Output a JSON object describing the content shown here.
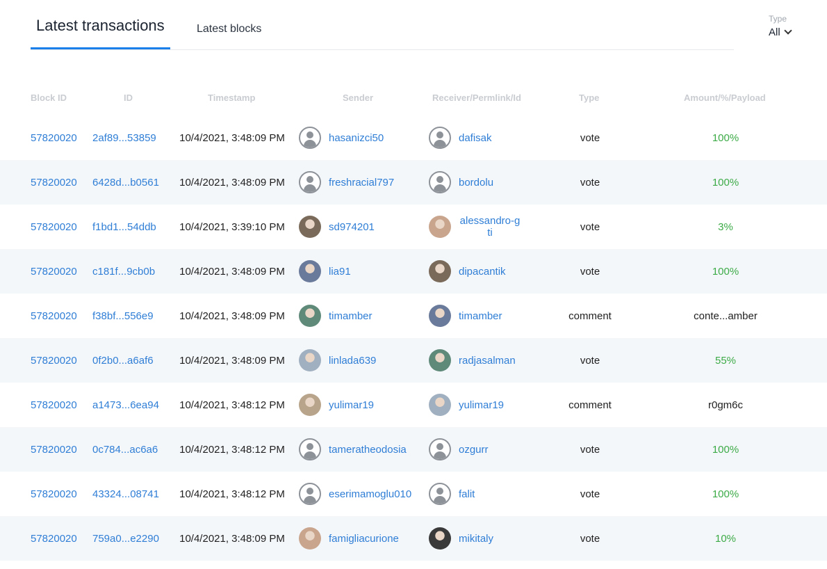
{
  "tabs": [
    {
      "label": "Latest transactions",
      "active": true
    },
    {
      "label": "Latest blocks",
      "active": false
    }
  ],
  "type_filter": {
    "label": "Type",
    "value": "All"
  },
  "columns": [
    "Block ID",
    "ID",
    "Timestamp",
    "Sender",
    "Receiver/Permlink/Id",
    "Type",
    "Amount/%/Payload"
  ],
  "colors": {
    "accent": "#1a7fe8",
    "link": "#2f7ed6",
    "positive": "#3cab47",
    "stripe": "#f4f7fa"
  },
  "rows": [
    {
      "block": "57820020",
      "id": "2af89...53859",
      "timestamp": "10/4/2021, 3:48:09 PM",
      "sender": "hasanizci50",
      "sender_avatar": "default-avatar-icon",
      "receiver": "dafisak",
      "receiver_avatar": "default-avatar-icon",
      "type": "vote",
      "amount": "100%",
      "amount_kind": "percent"
    },
    {
      "block": "57820020",
      "id": "6428d...b0561",
      "timestamp": "10/4/2021, 3:48:09 PM",
      "sender": "freshracial797",
      "sender_avatar": "default-avatar-icon",
      "receiver": "bordolu",
      "receiver_avatar": "default-avatar-icon",
      "type": "vote",
      "amount": "100%",
      "amount_kind": "percent"
    },
    {
      "block": "57820020",
      "id": "f1bd1...54ddb",
      "timestamp": "10/4/2021, 3:39:10 PM",
      "sender": "sd974201",
      "sender_avatar": "user-photo-avatar",
      "receiver": "alessandro-gti",
      "receiver_avatar": "user-photo-avatar",
      "type": "vote",
      "amount": "3%",
      "amount_kind": "percent"
    },
    {
      "block": "57820020",
      "id": "c181f...9cb0b",
      "timestamp": "10/4/2021, 3:48:09 PM",
      "sender": "lia91",
      "sender_avatar": "user-photo-avatar",
      "receiver": "dipacantik",
      "receiver_avatar": "user-photo-avatar",
      "type": "vote",
      "amount": "100%",
      "amount_kind": "percent"
    },
    {
      "block": "57820020",
      "id": "f38bf...556e9",
      "timestamp": "10/4/2021, 3:48:09 PM",
      "sender": "timamber",
      "sender_avatar": "user-photo-avatar",
      "receiver": "timamber",
      "receiver_avatar": "user-photo-avatar",
      "type": "comment",
      "amount": "conte...amber",
      "amount_kind": "payload"
    },
    {
      "block": "57820020",
      "id": "0f2b0...a6af6",
      "timestamp": "10/4/2021, 3:48:09 PM",
      "sender": "linlada639",
      "sender_avatar": "user-photo-avatar",
      "receiver": "radjasalman",
      "receiver_avatar": "user-photo-avatar",
      "type": "vote",
      "amount": "55%",
      "amount_kind": "percent"
    },
    {
      "block": "57820020",
      "id": "a1473...6ea94",
      "timestamp": "10/4/2021, 3:48:12 PM",
      "sender": "yulimar19",
      "sender_avatar": "user-photo-avatar",
      "receiver": "yulimar19",
      "receiver_avatar": "user-photo-avatar",
      "type": "comment",
      "amount": "r0gm6c",
      "amount_kind": "payload"
    },
    {
      "block": "57820020",
      "id": "0c784...ac6a6",
      "timestamp": "10/4/2021, 3:48:12 PM",
      "sender": "tameratheodosia",
      "sender_avatar": "default-avatar-icon",
      "receiver": "ozgurr",
      "receiver_avatar": "default-avatar-icon",
      "type": "vote",
      "amount": "100%",
      "amount_kind": "percent"
    },
    {
      "block": "57820020",
      "id": "43324...08741",
      "timestamp": "10/4/2021, 3:48:12 PM",
      "sender": "eserimamoglu010",
      "sender_avatar": "default-avatar-icon",
      "receiver": "falit",
      "receiver_avatar": "default-avatar-icon",
      "type": "vote",
      "amount": "100%",
      "amount_kind": "percent"
    },
    {
      "block": "57820020",
      "id": "759a0...e2290",
      "timestamp": "10/4/2021, 3:48:09 PM",
      "sender": "famigliacurione",
      "sender_avatar": "user-photo-avatar",
      "receiver": "mikitaly",
      "receiver_avatar": "user-photo-avatar",
      "type": "vote",
      "amount": "10%",
      "amount_kind": "percent"
    }
  ]
}
